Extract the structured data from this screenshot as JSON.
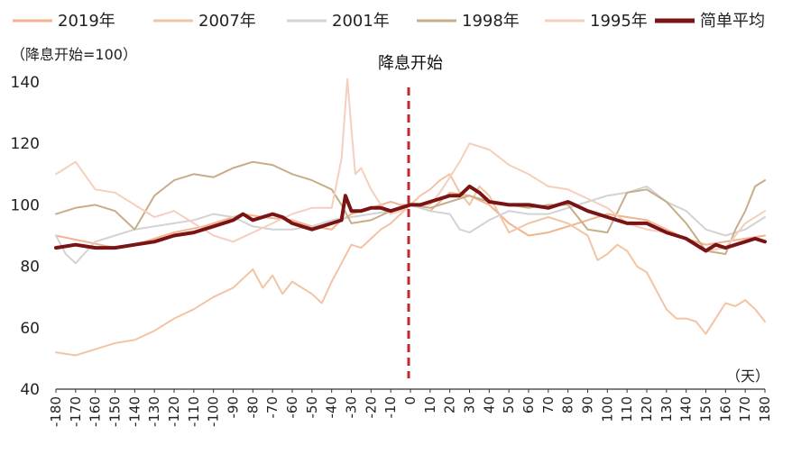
{
  "chart_data": {
    "type": "line",
    "ylabel": "（降息开始=100）",
    "xlabel": "（天）",
    "annotation": "降息开始",
    "xlim": [
      -180,
      180
    ],
    "ylim": [
      40,
      140
    ],
    "yticks": [
      40,
      60,
      80,
      100,
      120,
      140
    ],
    "xticks": [
      -180,
      -170,
      -160,
      -150,
      -140,
      -130,
      -120,
      -110,
      -100,
      -90,
      -80,
      -70,
      -60,
      -50,
      -40,
      -30,
      -20,
      -10,
      0,
      10,
      20,
      30,
      40,
      50,
      60,
      70,
      80,
      90,
      100,
      110,
      120,
      130,
      140,
      150,
      160,
      170,
      180
    ],
    "grid": false,
    "legend_position": "top",
    "series": [
      {
        "name": "2019年",
        "color": "#f2b48f",
        "width": 2,
        "x": [
          -180,
          -165,
          -150,
          -135,
          -120,
          -105,
          -95,
          -85,
          -75,
          -60,
          -50,
          -40,
          -35,
          -30,
          -25,
          -20,
          -15,
          -10,
          -5,
          0,
          5,
          10,
          15,
          20,
          30,
          40,
          50,
          60,
          70,
          80,
          90,
          100,
          110,
          120,
          130,
          140,
          150,
          160,
          170,
          180
        ],
        "y": [
          90,
          88,
          86,
          88,
          91,
          93,
          95,
          97,
          96,
          95,
          93,
          92,
          95,
          97,
          98,
          99,
          100,
          101,
          100,
          100,
          99,
          98,
          101,
          104,
          103,
          100,
          94,
          90,
          91,
          93,
          95,
          97,
          96,
          95,
          92,
          89,
          87,
          88,
          89,
          90
        ]
      },
      {
        "name": "2007年",
        "color": "#f2c4a4",
        "width": 2,
        "x": [
          -180,
          -170,
          -160,
          -150,
          -140,
          -130,
          -120,
          -110,
          -100,
          -90,
          -85,
          -80,
          -75,
          -70,
          -65,
          -60,
          -55,
          -50,
          -45,
          -40,
          -35,
          -30,
          -25,
          -20,
          -15,
          -10,
          -5,
          0,
          5,
          10,
          15,
          20,
          25,
          30,
          35,
          40,
          45,
          50,
          60,
          70,
          80,
          90,
          95,
          100,
          105,
          110,
          115,
          120,
          125,
          130,
          135,
          140,
          145,
          150,
          155,
          160,
          165,
          170,
          175,
          180
        ],
        "y": [
          52,
          51,
          53,
          55,
          56,
          59,
          63,
          66,
          70,
          73,
          76,
          79,
          73,
          77,
          71,
          75,
          73,
          71,
          68,
          75,
          81,
          87,
          86,
          89,
          92,
          94,
          97,
          100,
          103,
          105,
          108,
          110,
          104,
          100,
          106,
          103,
          97,
          91,
          94,
          96,
          94,
          90,
          82,
          84,
          87,
          85,
          80,
          78,
          72,
          66,
          63,
          63,
          62,
          58,
          63,
          68,
          67,
          69,
          66,
          62
        ]
      },
      {
        "name": "2001年",
        "color": "#d3d3d3",
        "width": 2,
        "x": [
          -180,
          -175,
          -170,
          -160,
          -150,
          -140,
          -130,
          -120,
          -110,
          -100,
          -90,
          -80,
          -70,
          -60,
          -50,
          -40,
          -30,
          -20,
          -10,
          0,
          10,
          20,
          25,
          30,
          40,
          50,
          60,
          70,
          80,
          90,
          100,
          110,
          120,
          130,
          140,
          150,
          160,
          170,
          180
        ],
        "y": [
          90,
          84,
          81,
          88,
          90,
          92,
          93,
          94,
          95,
          97,
          96,
          93,
          92,
          92,
          93,
          95,
          96,
          97,
          98,
          100,
          98,
          97,
          92,
          91,
          95,
          98,
          97,
          97,
          99,
          101,
          103,
          104,
          106,
          101,
          98,
          92,
          90,
          92,
          96
        ]
      },
      {
        "name": "1998年",
        "color": "#c7ad88",
        "width": 2,
        "x": [
          -180,
          -170,
          -160,
          -150,
          -140,
          -130,
          -120,
          -110,
          -100,
          -90,
          -80,
          -70,
          -60,
          -50,
          -40,
          -35,
          -30,
          -20,
          -10,
          0,
          10,
          20,
          30,
          40,
          50,
          60,
          70,
          80,
          90,
          100,
          110,
          120,
          130,
          140,
          150,
          160,
          165,
          170,
          175,
          180
        ],
        "y": [
          97,
          99,
          100,
          98,
          92,
          103,
          108,
          110,
          109,
          112,
          114,
          113,
          110,
          108,
          105,
          100,
          94,
          95,
          98,
          100,
          99,
          101,
          103,
          101,
          100,
          99,
          100,
          100,
          92,
          91,
          104,
          105,
          101,
          94,
          85,
          84,
          92,
          98,
          106,
          108
        ]
      },
      {
        "name": "1995年",
        "color": "#f5cfbd",
        "width": 2,
        "x": [
          -180,
          -175,
          -170,
          -160,
          -150,
          -140,
          -130,
          -120,
          -110,
          -100,
          -90,
          -80,
          -70,
          -60,
          -50,
          -40,
          -35,
          -32,
          -30,
          -28,
          -25,
          -20,
          -15,
          -10,
          -5,
          0,
          5,
          10,
          15,
          20,
          25,
          30,
          40,
          50,
          60,
          70,
          80,
          90,
          100,
          110,
          120,
          130,
          140,
          150,
          160,
          170,
          180
        ],
        "y": [
          110,
          112,
          114,
          105,
          104,
          100,
          96,
          98,
          94,
          90,
          88,
          91,
          94,
          97,
          99,
          99,
          115,
          141,
          125,
          110,
          112,
          105,
          100,
          97,
          98,
          100,
          100,
          100,
          104,
          109,
          114,
          120,
          118,
          113,
          110,
          106,
          105,
          102,
          99,
          94,
          92,
          91,
          89,
          85,
          86,
          94,
          98
        ]
      },
      {
        "name": "简单平均",
        "color": "#7a1414",
        "width": 4,
        "x": [
          -180,
          -170,
          -160,
          -150,
          -140,
          -130,
          -120,
          -110,
          -100,
          -90,
          -85,
          -80,
          -75,
          -70,
          -65,
          -60,
          -55,
          -50,
          -45,
          -40,
          -35,
          -33,
          -30,
          -25,
          -20,
          -15,
          -10,
          -5,
          0,
          5,
          10,
          15,
          20,
          25,
          30,
          35,
          40,
          50,
          60,
          70,
          80,
          90,
          100,
          110,
          120,
          130,
          140,
          150,
          155,
          160,
          165,
          170,
          175,
          180
        ],
        "y": [
          86,
          87,
          86,
          86,
          87,
          88,
          90,
          91,
          93,
          95,
          97,
          95,
          96,
          97,
          96,
          94,
          93,
          92,
          93,
          94,
          95,
          103,
          98,
          98,
          99,
          99,
          98,
          99,
          100,
          100,
          101,
          102,
          103,
          103,
          106,
          104,
          101,
          100,
          100,
          99,
          101,
          98,
          96,
          94,
          94,
          91,
          89,
          85,
          87,
          86,
          87,
          88,
          89,
          88
        ]
      }
    ]
  }
}
